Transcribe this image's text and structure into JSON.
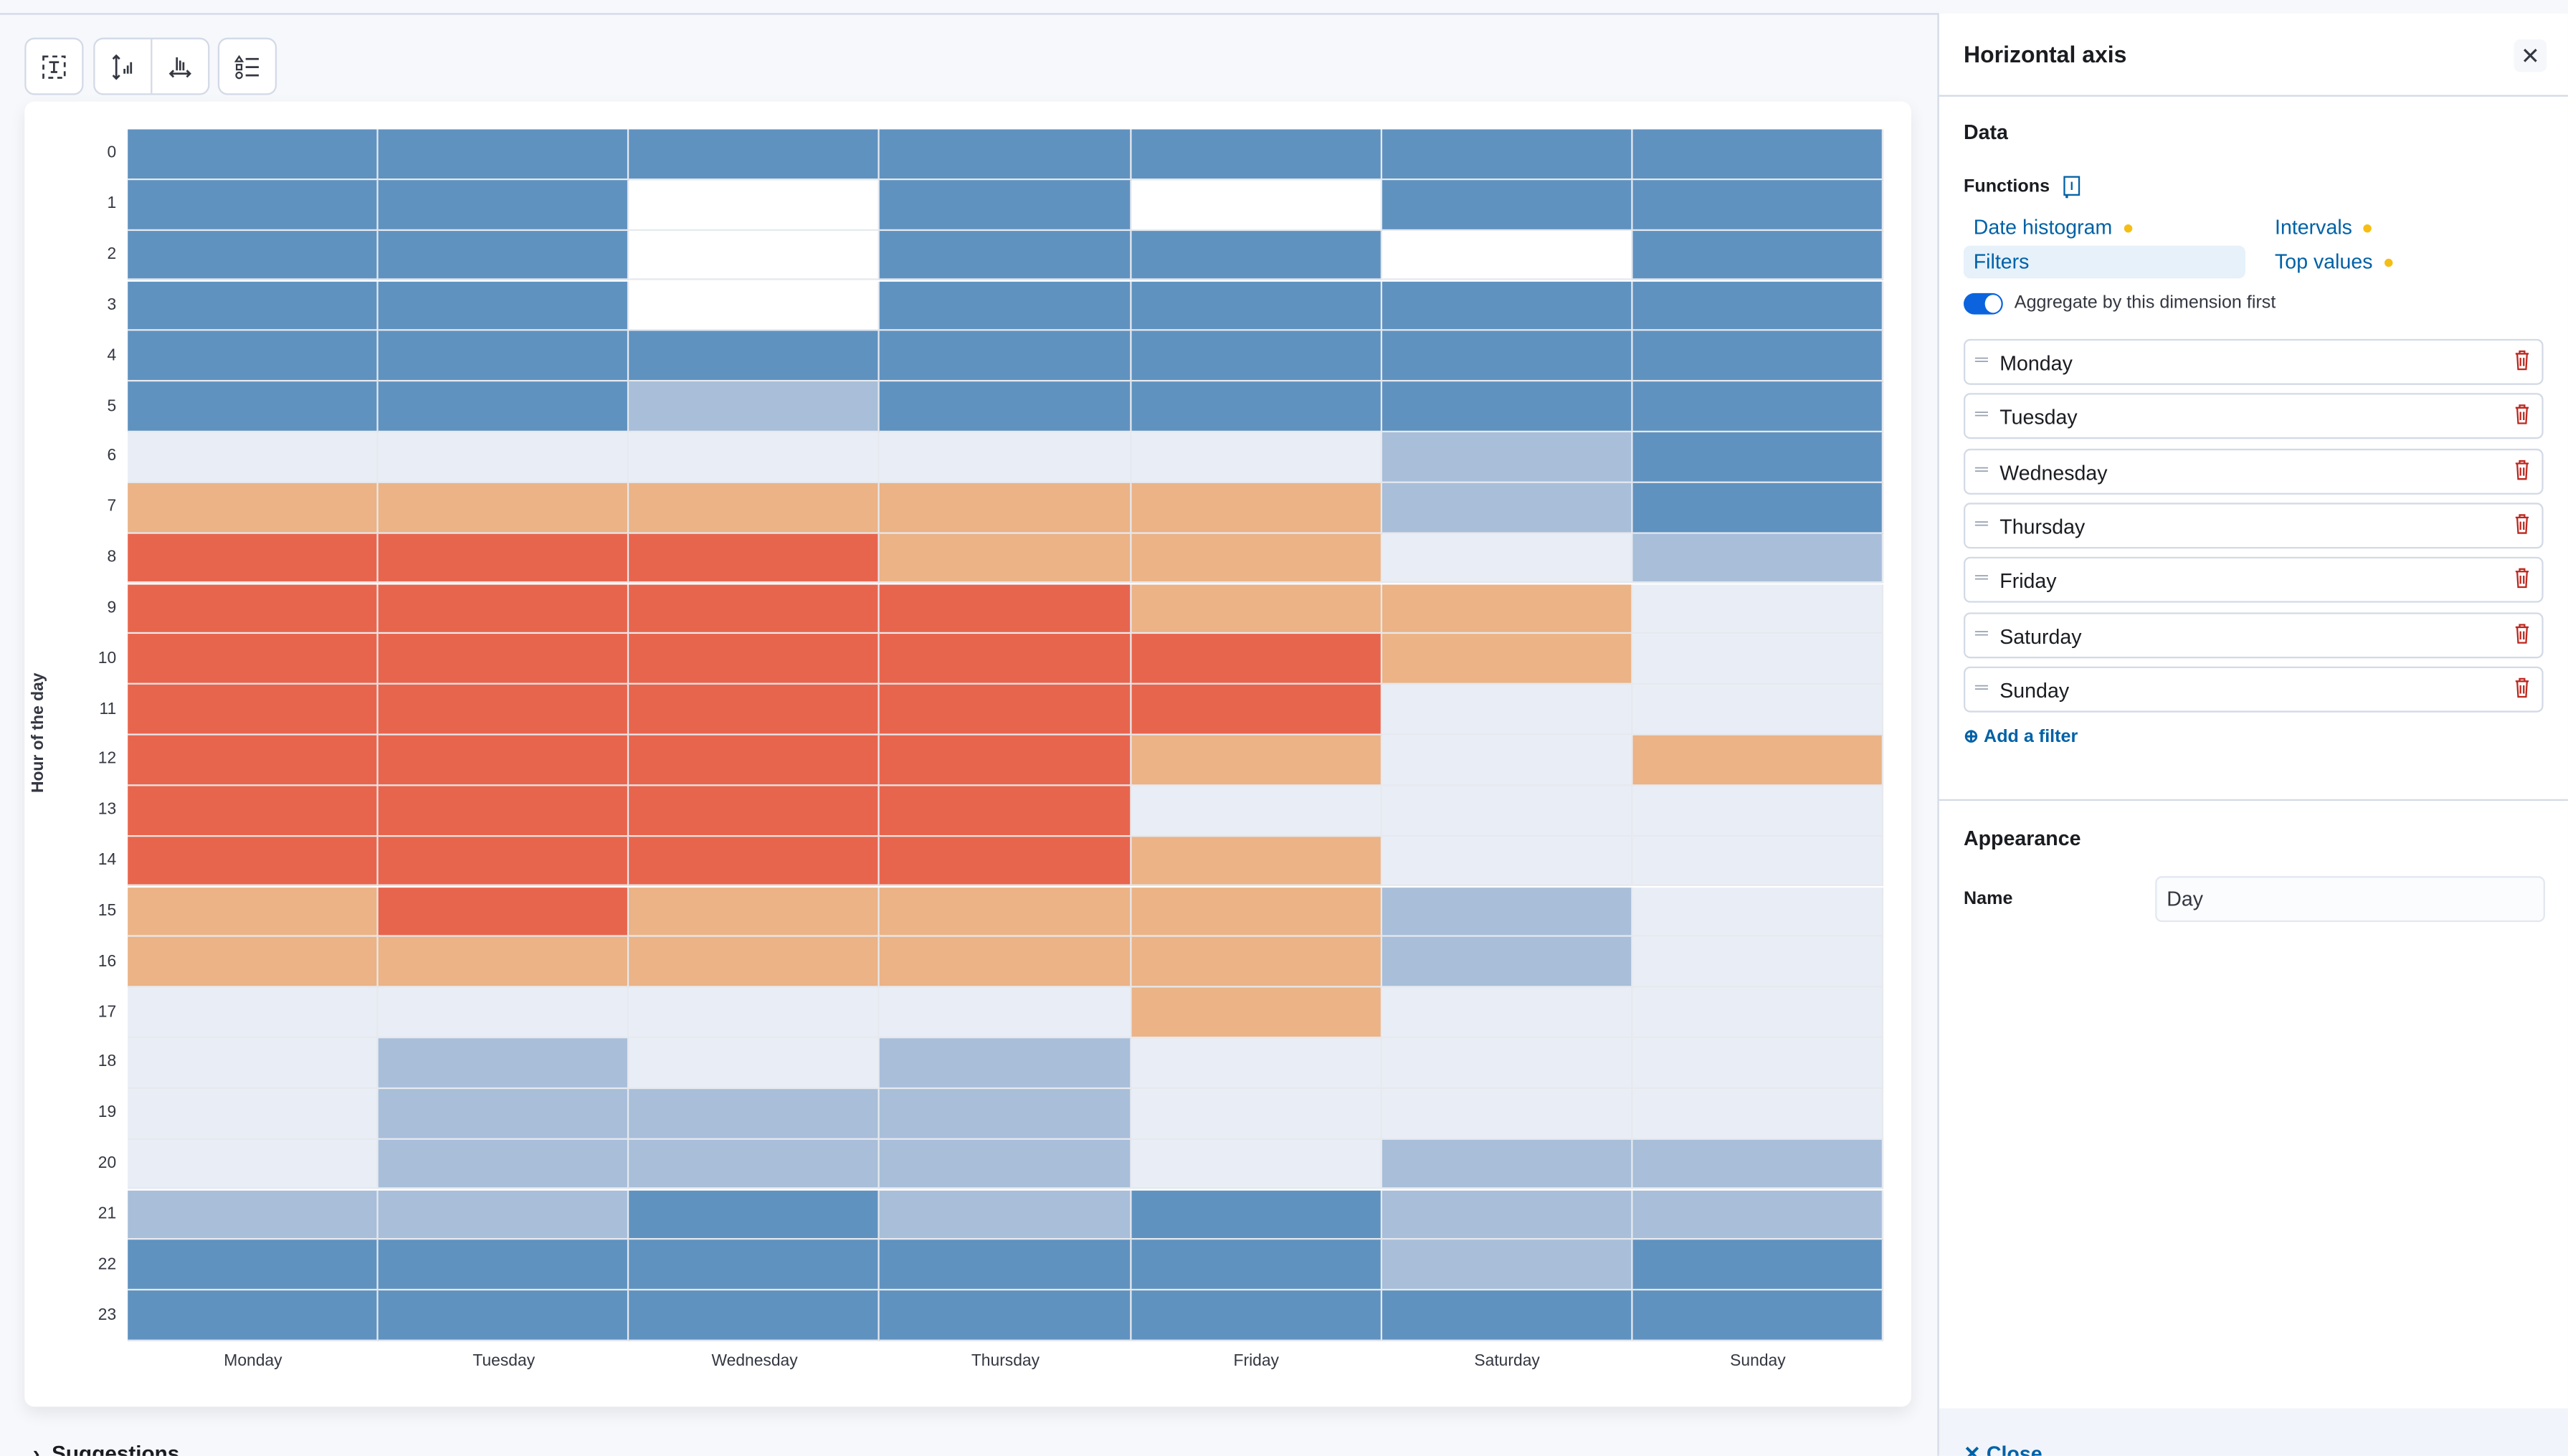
{
  "toolbar": {
    "buttons": [
      "title-and-text-icon",
      "left-axis-icon",
      "bottom-axis-icon",
      "legend-icon"
    ]
  },
  "chart_data": {
    "type": "heatmap",
    "ylabel": "Hour of the day",
    "xlabel": "",
    "x_categories": [
      "Monday",
      "Tuesday",
      "Wednesday",
      "Thursday",
      "Friday",
      "Saturday",
      "Sunday"
    ],
    "y_categories": [
      "0",
      "1",
      "2",
      "3",
      "4",
      "5",
      "6",
      "7",
      "8",
      "9",
      "10",
      "11",
      "12",
      "13",
      "14",
      "15",
      "16",
      "17",
      "18",
      "19",
      "20",
      "21",
      "22",
      "23"
    ],
    "color_scale": [
      "#6092C0",
      "#A8BED9",
      "#E9EDF5",
      "#EBB386",
      "#E8654D"
    ],
    "no_data_color": "#FFFFFF",
    "legend": "none",
    "levels": [
      [
        0,
        0,
        0,
        0,
        0,
        0,
        0
      ],
      [
        0,
        0,
        null,
        0,
        null,
        0,
        0
      ],
      [
        0,
        0,
        null,
        0,
        0,
        null,
        0
      ],
      [
        0,
        0,
        null,
        0,
        0,
        0,
        0
      ],
      [
        0,
        0,
        0,
        0,
        0,
        0,
        0
      ],
      [
        0,
        0,
        1,
        0,
        0,
        0,
        0
      ],
      [
        2,
        2,
        2,
        2,
        2,
        1,
        0
      ],
      [
        3,
        3,
        3,
        3,
        3,
        1,
        0
      ],
      [
        4,
        4,
        4,
        3,
        3,
        2,
        1
      ],
      [
        4,
        4,
        4,
        4,
        3,
        3,
        2
      ],
      [
        4,
        4,
        4,
        4,
        4,
        3,
        2
      ],
      [
        4,
        4,
        4,
        4,
        4,
        2,
        2
      ],
      [
        4,
        4,
        4,
        4,
        3,
        2,
        3
      ],
      [
        4,
        4,
        4,
        4,
        2,
        2,
        2
      ],
      [
        4,
        4,
        4,
        4,
        3,
        2,
        2
      ],
      [
        3,
        4,
        3,
        3,
        3,
        1,
        2
      ],
      [
        3,
        3,
        3,
        3,
        3,
        1,
        2
      ],
      [
        2,
        2,
        2,
        2,
        3,
        2,
        2
      ],
      [
        2,
        1,
        2,
        1,
        2,
        2,
        2
      ],
      [
        2,
        1,
        1,
        1,
        2,
        2,
        2
      ],
      [
        2,
        1,
        1,
        1,
        2,
        1,
        1
      ],
      [
        1,
        1,
        0,
        1,
        0,
        1,
        1
      ],
      [
        0,
        0,
        0,
        0,
        0,
        1,
        0
      ],
      [
        0,
        0,
        0,
        0,
        0,
        0,
        0
      ]
    ]
  },
  "bottom": {
    "suggestions_label": "Suggestions"
  },
  "panel": {
    "title": "Horizontal axis",
    "data_heading": "Data",
    "functions_label": "Functions",
    "functions": [
      {
        "label": "Date histogram",
        "dot": true
      },
      {
        "label": "Intervals",
        "dot": true
      },
      {
        "label": "Filters",
        "selected": true
      },
      {
        "label": "Top values",
        "dot": true
      }
    ],
    "toggle": {
      "label": "Aggregate by this dimension first",
      "on": true
    },
    "filters": [
      "Monday",
      "Tuesday",
      "Wednesday",
      "Thursday",
      "Friday",
      "Saturday",
      "Sunday"
    ],
    "add_filter": "Add a filter",
    "appearance_heading": "Appearance",
    "name_label": "Name",
    "name_value": "Day",
    "close_label": "Close"
  }
}
